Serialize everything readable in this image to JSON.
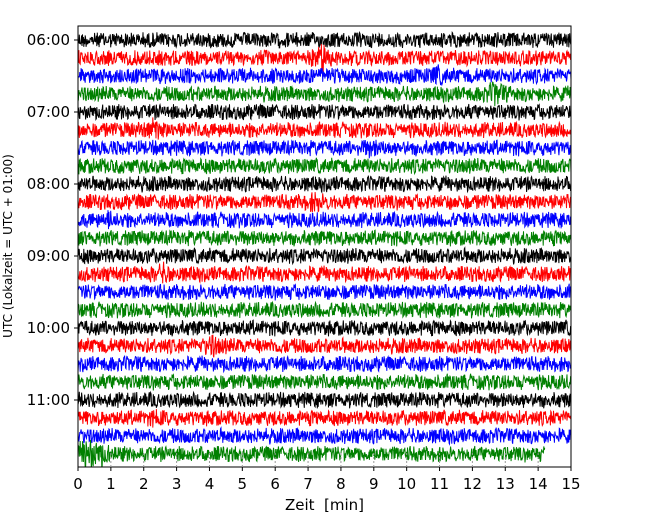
{
  "chart_data": {
    "type": "line",
    "subtype": "dayplot-seismogram",
    "title": "",
    "xlabel": "Zeit  [min]",
    "ylabel": "UTC (Lokalzeit = UTC + 01:00)",
    "xlim": [
      0,
      15
    ],
    "x_ticks": [
      "0",
      "1",
      "2",
      "3",
      "4",
      "5",
      "6",
      "7",
      "8",
      "9",
      "10",
      "11",
      "12",
      "13",
      "14",
      "15"
    ],
    "y_ticks": [
      "06:00",
      "07:00",
      "08:00",
      "09:00",
      "10:00",
      "11:00"
    ],
    "interval_minutes": 15,
    "color_cycle": [
      "#000000",
      "#ff0000",
      "#0000ff",
      "#008000"
    ],
    "traces": [
      {
        "start": "06:00",
        "end_min": 15
      },
      {
        "start": "06:15",
        "end_min": 15
      },
      {
        "start": "06:30",
        "end_min": 15
      },
      {
        "start": "06:45",
        "end_min": 15
      },
      {
        "start": "07:00",
        "end_min": 15
      },
      {
        "start": "07:15",
        "end_min": 15
      },
      {
        "start": "07:30",
        "end_min": 15
      },
      {
        "start": "07:45",
        "end_min": 15
      },
      {
        "start": "08:00",
        "end_min": 15
      },
      {
        "start": "08:15",
        "end_min": 15
      },
      {
        "start": "08:30",
        "end_min": 15
      },
      {
        "start": "08:45",
        "end_min": 15
      },
      {
        "start": "09:00",
        "end_min": 15
      },
      {
        "start": "09:15",
        "end_min": 15
      },
      {
        "start": "09:30",
        "end_min": 15
      },
      {
        "start": "09:45",
        "end_min": 15
      },
      {
        "start": "10:00",
        "end_min": 15
      },
      {
        "start": "10:15",
        "end_min": 15
      },
      {
        "start": "10:30",
        "end_min": 15
      },
      {
        "start": "10:45",
        "end_min": 15
      },
      {
        "start": "11:00",
        "end_min": 15
      },
      {
        "start": "11:15",
        "end_min": 15
      },
      {
        "start": "11:30",
        "end_min": 15
      },
      {
        "start": "11:45",
        "end_min": 14.2
      }
    ],
    "events": [
      {
        "trace": "06:15",
        "min": 7.4,
        "amp": 2.2
      },
      {
        "trace": "06:30",
        "min": 10.9,
        "amp": 1.6
      },
      {
        "trace": "06:45",
        "min": 12.7,
        "amp": 2.0
      },
      {
        "trace": "07:15",
        "min": 2.3,
        "amp": 1.8
      },
      {
        "trace": "07:30",
        "min": 8.9,
        "amp": 1.5
      },
      {
        "trace": "08:15",
        "min": 7.2,
        "amp": 1.6
      },
      {
        "trace": "08:30",
        "min": 1.0,
        "amp": 1.5
      },
      {
        "trace": "09:15",
        "min": 2.6,
        "amp": 1.6
      },
      {
        "trace": "10:15",
        "min": 4.1,
        "amp": 1.8
      },
      {
        "trace": "11:15",
        "min": 2.4,
        "amp": 1.3
      },
      {
        "trace": "11:45",
        "min": 0.3,
        "amp": 3.2
      },
      {
        "trace": "11:45",
        "min": 0.7,
        "amp": 1.8
      }
    ]
  }
}
